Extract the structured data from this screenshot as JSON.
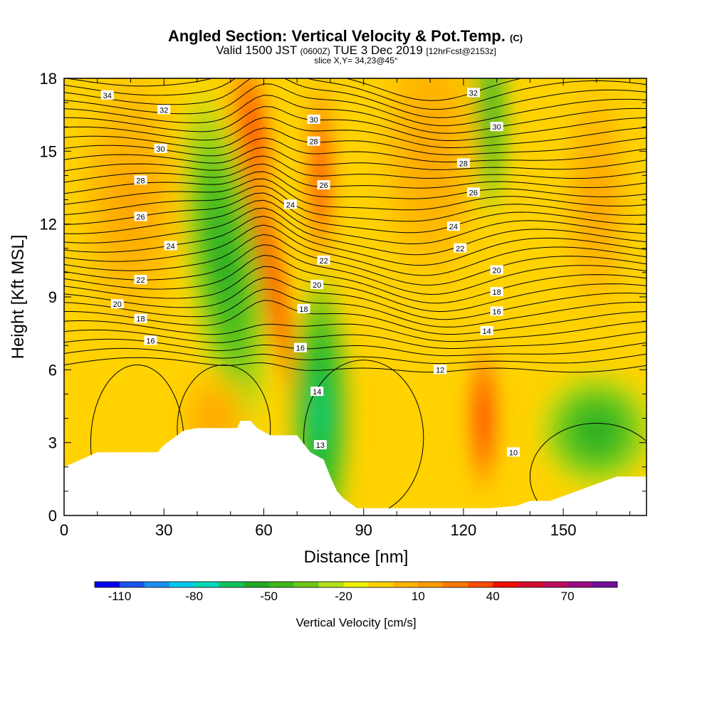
{
  "chart_data": {
    "type": "heatmap",
    "title": "Angled Section: Vertical Velocity & Pot.Temp.",
    "title_unit": "(C)",
    "subtitle_main": "Valid 1500 JST",
    "subtitle_z": "(0600Z)",
    "subtitle_date": "TUE 3 Dec 2019",
    "subtitle_fcst": "[12hrFcst@2153z]",
    "slice_label": "slice X,Y= 34,23@45°",
    "xlabel": "Distance [nm]",
    "ylabel": "Height [Kft MSL]",
    "xlim": [
      0,
      175
    ],
    "ylim": [
      0,
      18
    ],
    "x_ticks": [
      0,
      30,
      60,
      90,
      120,
      150
    ],
    "y_ticks": [
      0,
      3,
      6,
      9,
      12,
      15,
      18
    ],
    "colorbar": {
      "label": "Vertical Velocity [cm/s]",
      "range": [
        -120,
        90
      ],
      "step": 10,
      "tick_labels": [
        "-110",
        "-80",
        "-50",
        "-20",
        "10",
        "40",
        "70"
      ],
      "tick_values": [
        -110,
        -80,
        -50,
        -20,
        10,
        40,
        70
      ],
      "colors": [
        "#0000ee",
        "#1a55f0",
        "#1a8ef0",
        "#00c6ee",
        "#00d8b8",
        "#12c45c",
        "#22aa28",
        "#3eb81a",
        "#6cc81a",
        "#b4e01a",
        "#f0f000",
        "#ffd200",
        "#ffb400",
        "#ff9a00",
        "#ff7800",
        "#ff4c00",
        "#f01000",
        "#d80c30",
        "#bc0c5c",
        "#9a0c82",
        "#72109a"
      ]
    },
    "terrain_kft": [
      [
        0,
        2.0
      ],
      [
        5,
        2.3
      ],
      [
        10,
        2.6
      ],
      [
        20,
        2.6
      ],
      [
        28,
        2.6
      ],
      [
        30,
        2.9
      ],
      [
        33,
        3.2
      ],
      [
        36,
        3.5
      ],
      [
        40,
        3.6
      ],
      [
        45,
        3.6
      ],
      [
        50,
        3.6
      ],
      [
        52,
        3.6
      ],
      [
        53,
        3.9
      ],
      [
        56,
        3.9
      ],
      [
        58,
        3.6
      ],
      [
        62,
        3.3
      ],
      [
        66,
        3.3
      ],
      [
        70,
        3.3
      ],
      [
        74,
        2.6
      ],
      [
        78,
        2.3
      ],
      [
        80,
        1.6
      ],
      [
        82,
        1.0
      ],
      [
        84,
        0.7
      ],
      [
        86,
        0.5
      ],
      [
        88,
        0.3
      ],
      [
        92,
        0.3
      ],
      [
        100,
        0.3
      ],
      [
        110,
        0.3
      ],
      [
        120,
        0.3
      ],
      [
        128,
        0.3
      ],
      [
        136,
        0.4
      ],
      [
        140,
        0.6
      ],
      [
        146,
        0.6
      ],
      [
        152,
        0.9
      ],
      [
        158,
        1.2
      ],
      [
        166,
        1.6
      ],
      [
        175,
        1.6
      ]
    ],
    "velocity_cells": [
      {
        "x": 60,
        "y": 11,
        "value": 45
      },
      {
        "x": 77,
        "y": 14,
        "value": 40
      },
      {
        "x": 55,
        "y": 17,
        "value": 35
      },
      {
        "x": 126,
        "y": 4,
        "value": 45
      },
      {
        "x": 48,
        "y": 11,
        "value": -40
      },
      {
        "x": 77,
        "y": 4,
        "value": -60
      },
      {
        "x": 128,
        "y": 17,
        "value": -35
      },
      {
        "x": 160,
        "y": 3.5,
        "value": -30
      },
      {
        "x": 110,
        "y": 15,
        "value": 20
      },
      {
        "x": 20,
        "y": 13,
        "value": 15
      },
      {
        "x": 45,
        "y": 4,
        "value": 12
      }
    ],
    "theta_labels": [
      {
        "x": 13,
        "y": 17.3,
        "value": "34"
      },
      {
        "x": 30,
        "y": 16.7,
        "value": "32"
      },
      {
        "x": 29,
        "y": 15.1,
        "value": "30"
      },
      {
        "x": 23,
        "y": 13.8,
        "value": "28"
      },
      {
        "x": 23,
        "y": 12.3,
        "value": "26"
      },
      {
        "x": 32,
        "y": 11.1,
        "value": "24"
      },
      {
        "x": 23,
        "y": 9.7,
        "value": "22"
      },
      {
        "x": 16,
        "y": 8.7,
        "value": "20"
      },
      {
        "x": 23,
        "y": 8.1,
        "value": "18"
      },
      {
        "x": 26,
        "y": 7.2,
        "value": "16"
      },
      {
        "x": 75,
        "y": 16.3,
        "value": "30"
      },
      {
        "x": 75,
        "y": 15.4,
        "value": "28"
      },
      {
        "x": 78,
        "y": 13.6,
        "value": "26"
      },
      {
        "x": 68,
        "y": 12.8,
        "value": "24"
      },
      {
        "x": 78,
        "y": 10.5,
        "value": "22"
      },
      {
        "x": 76,
        "y": 9.5,
        "value": "20"
      },
      {
        "x": 72,
        "y": 8.5,
        "value": "18"
      },
      {
        "x": 71,
        "y": 6.9,
        "value": "16"
      },
      {
        "x": 76,
        "y": 5.1,
        "value": "14"
      },
      {
        "x": 77,
        "y": 2.9,
        "value": "13"
      },
      {
        "x": 123,
        "y": 17.4,
        "value": "32"
      },
      {
        "x": 130,
        "y": 16.0,
        "value": "30"
      },
      {
        "x": 120,
        "y": 14.5,
        "value": "28"
      },
      {
        "x": 123,
        "y": 13.3,
        "value": "26"
      },
      {
        "x": 117,
        "y": 11.9,
        "value": "24"
      },
      {
        "x": 119,
        "y": 11.0,
        "value": "22"
      },
      {
        "x": 130,
        "y": 10.1,
        "value": "20"
      },
      {
        "x": 130,
        "y": 9.2,
        "value": "18"
      },
      {
        "x": 130,
        "y": 8.4,
        "value": "16"
      },
      {
        "x": 127,
        "y": 7.6,
        "value": "14"
      },
      {
        "x": 113,
        "y": 6.0,
        "value": "12"
      },
      {
        "x": 135,
        "y": 2.6,
        "value": "10"
      }
    ]
  }
}
